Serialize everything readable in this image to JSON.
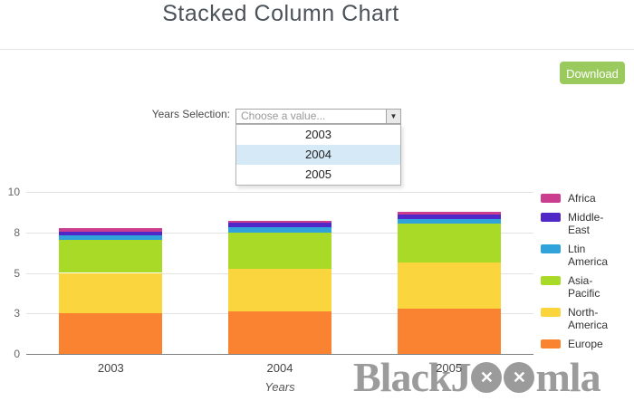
{
  "page": {
    "title": "Stacked Column Chart"
  },
  "toolbar": {
    "download_label": "Download"
  },
  "filter": {
    "label": "Years Selection:",
    "placeholder": "Choose a value...",
    "options": [
      "2003",
      "2004",
      "2005"
    ],
    "highlighted_option": "2004",
    "arrow_icon": "▼"
  },
  "chart_data": {
    "type": "bar",
    "stacked": true,
    "title": "",
    "xlabel": "Years",
    "ylabel": "",
    "ylim": [
      0,
      10
    ],
    "ytick_values": [
      0,
      2.5,
      5,
      7.5,
      10
    ],
    "ytick_labels": [
      "0",
      "3",
      "5",
      "8",
      "10"
    ],
    "grid": true,
    "legend_position": "right",
    "categories": [
      "2003",
      "2004",
      "2005"
    ],
    "series": [
      {
        "name": "Europe",
        "color": "#fa8331",
        "values": [
          2.5,
          2.6,
          2.8
        ]
      },
      {
        "name": "North-America",
        "color": "#fbd53d",
        "values": [
          2.5,
          2.65,
          2.85
        ]
      },
      {
        "name": "Asia-Pacific",
        "color": "#a9da27",
        "values": [
          2.05,
          2.25,
          2.4
        ]
      },
      {
        "name": "Ltin America",
        "color": "#30a4da",
        "values": [
          0.27,
          0.3,
          0.3
        ]
      },
      {
        "name": "Middle-East",
        "color": "#5128c8",
        "values": [
          0.2,
          0.3,
          0.25
        ]
      },
      {
        "name": "Africa",
        "color": "#cb3d8f",
        "values": [
          0.22,
          0.12,
          0.18
        ]
      }
    ],
    "legend_order": [
      "Africa",
      "Middle-East",
      "Ltin America",
      "Asia-Pacific",
      "North-America",
      "Europe"
    ]
  },
  "watermark": {
    "prefix": "BlackJ",
    "suffix": "mla",
    "circle_glyph": "✕",
    "circles": 2
  },
  "ui_colors": {
    "download_button": "#9aca5e",
    "option_highlight": "#d5e9f7",
    "watermark_gray": "#9b9b9b",
    "title_text": "#4b525a"
  }
}
